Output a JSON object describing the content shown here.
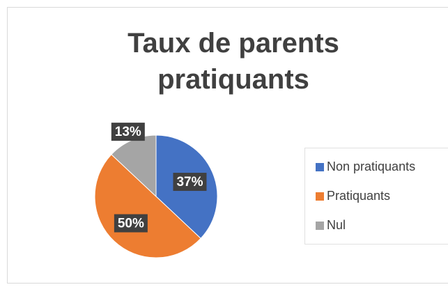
{
  "chart_data": {
    "type": "pie",
    "title": "Taux de parents pratiquants",
    "categories": [
      "Non pratiquants",
      "Pratiquants",
      "Nul"
    ],
    "values": [
      37,
      50,
      13
    ],
    "value_labels": [
      "37%",
      "50%",
      "13%"
    ],
    "colors": [
      "#4472c4",
      "#ed7d31",
      "#a5a5a5"
    ],
    "legend": "right"
  }
}
